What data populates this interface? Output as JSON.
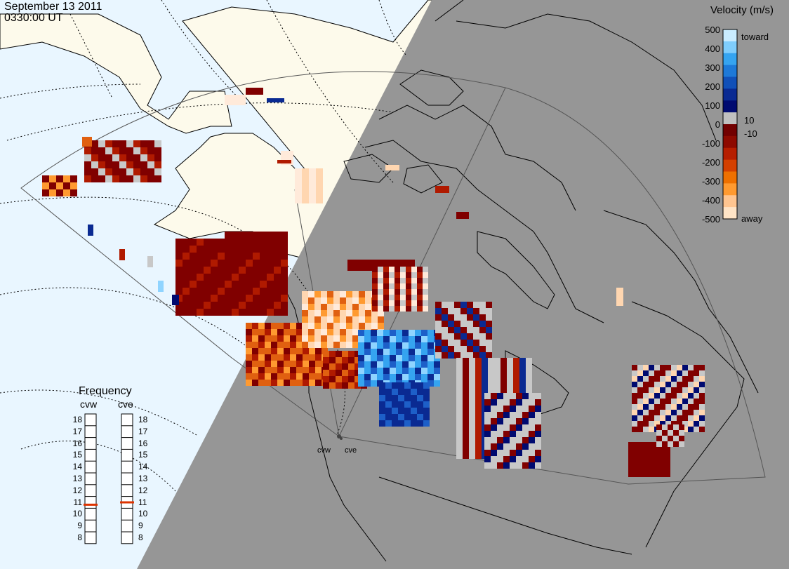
{
  "header": {
    "date": "September 13 2011",
    "time": "0330:00 UT"
  },
  "velocity_scale": {
    "title": "Velocity (m/s)",
    "ticks": [
      "500",
      "400",
      "300",
      "200",
      "100",
      "0",
      "-100",
      "-200",
      "-300",
      "-400",
      "-500"
    ],
    "toward_label": "toward",
    "away_label": "away",
    "pos_threshold": "10",
    "neg_threshold": "-10",
    "colors": [
      "#c9ecff",
      "#7fcdfc",
      "#35a4f0",
      "#1d79d8",
      "#1150b8",
      "#0a2a92",
      "#000a70",
      "#c0c0c0",
      "#720000",
      "#8e0a00",
      "#b61e00",
      "#d44000",
      "#ee7000",
      "#ff9a30",
      "#ffc590",
      "#ffe4c6"
    ]
  },
  "frequency": {
    "title": "Frequency",
    "radars": [
      {
        "name": "cvw",
        "freq": 10.8
      },
      {
        "name": "cve",
        "freq": 11.0
      }
    ],
    "ticks": [
      "18",
      "17",
      "16",
      "15",
      "14",
      "13",
      "12",
      "11",
      "10",
      "9",
      "8"
    ]
  },
  "radar_sites": [
    "cvw",
    "cve"
  ],
  "map_colors": {
    "land": "#fdfaeb",
    "ocean_day": "#e9f6ff",
    "night": "#969696",
    "grey_scatter": "#c8c8c8"
  }
}
